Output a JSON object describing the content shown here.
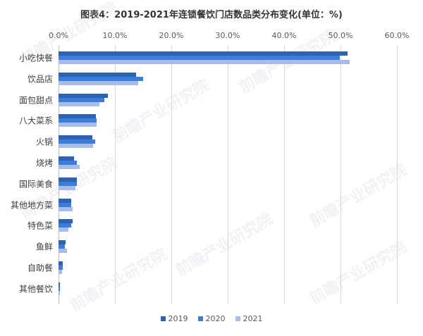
{
  "title": "图表4：2019-2021年连锁餐饮门店数品类分布变化(单位：%)",
  "watermark": "前瞻产业研究院",
  "chart_data": {
    "type": "bar",
    "orientation": "horizontal",
    "title": "图表4：2019-2021年连锁餐饮门店数品类分布变化(单位：%)",
    "xlabel": "",
    "ylabel": "",
    "xlim": [
      0,
      60
    ],
    "x_ticks": [
      "0.0%",
      "10.0%",
      "20.0%",
      "30.0%",
      "40.0%",
      "50.0%",
      "60.0%"
    ],
    "grid": true,
    "legend_position": "bottom",
    "categories": [
      "小吃快餐",
      "饮品店",
      "面包甜点",
      "八大菜系",
      "火锅",
      "烧烤",
      "国际美食",
      "其他地方菜",
      "特色菜",
      "鱼鲜",
      "自助餐",
      "其他餐饮"
    ],
    "series": [
      {
        "name": "2019",
        "color": "#2E62B3",
        "values": [
          51.3,
          13.8,
          8.8,
          6.6,
          6.0,
          2.7,
          3.3,
          2.3,
          2.5,
          1.3,
          0.8,
          0.3
        ]
      },
      {
        "name": "2020",
        "color": "#3B7DD8",
        "values": [
          49.9,
          15.0,
          8.1,
          6.7,
          6.5,
          3.2,
          3.3,
          2.3,
          2.3,
          1.1,
          0.8,
          0.2
        ]
      },
      {
        "name": "2021",
        "color": "#A7BCE8",
        "values": [
          51.6,
          14.1,
          7.2,
          6.8,
          6.1,
          3.8,
          3.0,
          2.5,
          1.8,
          1.5,
          0.6,
          0.3
        ]
      }
    ]
  },
  "legend": [
    "2019",
    "2020",
    "2021"
  ]
}
